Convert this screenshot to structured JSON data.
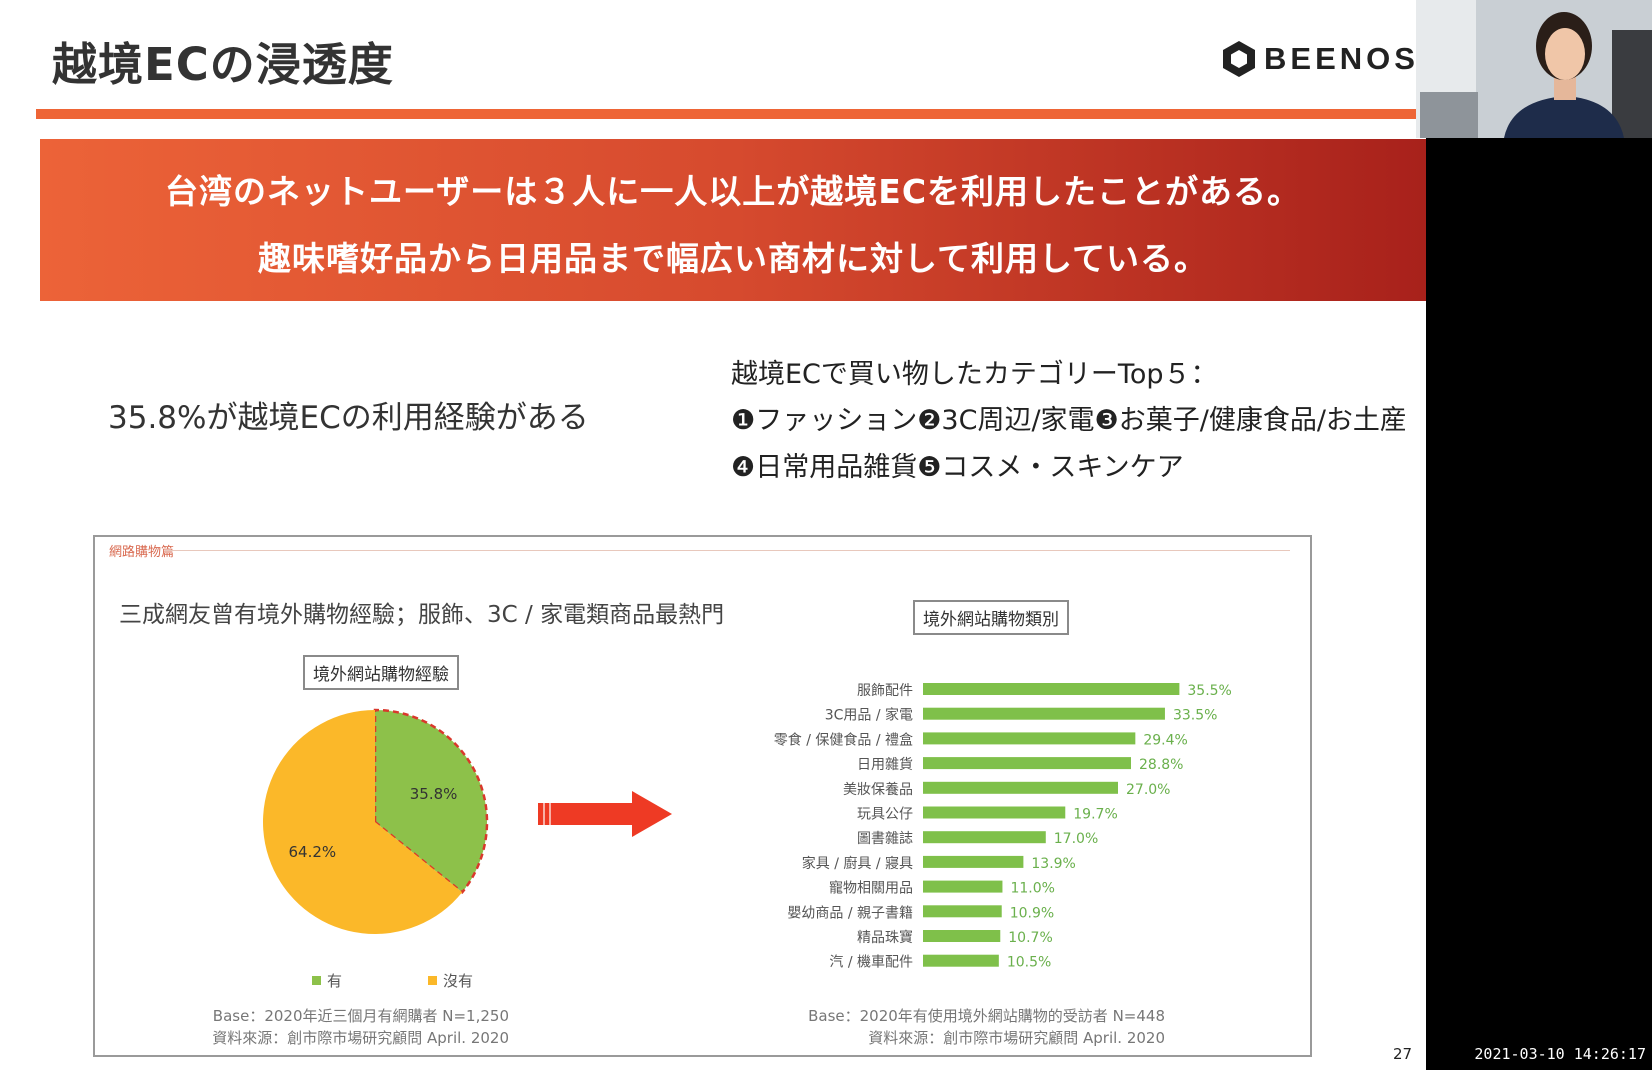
{
  "slide": {
    "title": "越境ECの浸透度",
    "brand": "BEENOS",
    "banner": {
      "line1": "台湾のネットユーザーは３人に一人以上が越境ECを利用したことがある。",
      "line2": "趣味嗜好品から日用品まで幅広い商材に対して利用している。"
    },
    "stat_text": "35.8%が越境ECの利用経験がある",
    "top5": {
      "heading": "越境ECで買い物したカテゴリーTop５：",
      "line1": "❶ファッション❷3C周辺/家電❸お菓子/健康食品/お土産",
      "line2": "❹日常用品雑貨❺コスメ・スキンケア"
    },
    "page_number": "27"
  },
  "figure": {
    "tag": "網路購物篇",
    "title": "三成網友曾有境外購物經驗；服飾、3C / 家電類商品最熱門",
    "pie_caption": "境外網站購物經驗",
    "bar_caption": "境外網站購物類別",
    "legend_yes": "有",
    "legend_no": "沒有",
    "pie_base": "Base：2020年近三個月有網購者 N=1,250",
    "pie_source": "資料來源：創市際市場研究顧問 April. 2020",
    "bar_base": "Base：2020年有使用境外網站購物的受訪者 N=448",
    "bar_source": "資料來源：創市際市場研究顧問 April. 2020",
    "colors": {
      "green": "#8dc14a",
      "yellow": "#fbb829",
      "bar": "#7fc04a",
      "arrow": "#ee3a24",
      "bar_label": "#6ab04c"
    }
  },
  "chart_data": [
    {
      "type": "pie",
      "title": "境外網站購物經驗",
      "categories": [
        "有",
        "沒有"
      ],
      "values": [
        35.8,
        64.2
      ],
      "labels": [
        "35.8%",
        "64.2%"
      ],
      "colors": [
        "#8dc14a",
        "#fbb829"
      ]
    },
    {
      "type": "bar",
      "orientation": "horizontal",
      "title": "境外網站購物類別",
      "categories": [
        "服飾配件",
        "3C用品 / 家電",
        "零食 / 保健食品 / 禮盒",
        "日用雜貨",
        "美妝保養品",
        "玩具公仔",
        "圖書雜誌",
        "家具 / 廚具 / 寢具",
        "寵物相關用品",
        "嬰幼商品 / 親子書籍",
        "精品珠寶",
        "汽 / 機車配件"
      ],
      "values": [
        35.5,
        33.5,
        29.4,
        28.8,
        27.0,
        19.7,
        17.0,
        13.9,
        11.0,
        10.9,
        10.7,
        10.5
      ],
      "labels": [
        "35.5%",
        "33.5%",
        "29.4%",
        "28.8%",
        "27.0%",
        "19.7%",
        "17.0%",
        "13.9%",
        "11.0%",
        "10.9%",
        "10.7%",
        "10.5%"
      ]
    }
  ],
  "overlay": {
    "timestamp": "2021-03-10 14:26:17"
  }
}
